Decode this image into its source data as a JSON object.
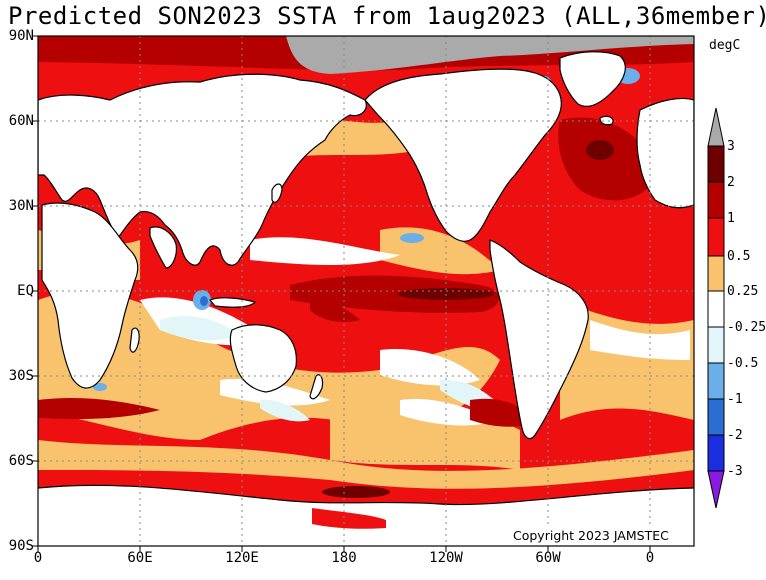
{
  "title": "Predicted SON2023 SSTA from 1aug2023 (ALL,36member)",
  "unit_label": "degC",
  "copyright": "Copyright 2023 JAMSTEC",
  "lat_labels": [
    "90N",
    "60N",
    "30N",
    "EQ",
    "30S",
    "60S",
    "90S"
  ],
  "lon_labels": [
    "0",
    "60E",
    "120E",
    "180",
    "120W",
    "60W",
    "0"
  ],
  "colorbar": {
    "labels": [
      "3",
      "2",
      "1",
      "0.5",
      "0.25",
      "-0.25",
      "-0.5",
      "-1",
      "-2",
      "-3"
    ],
    "colors": [
      "#6e0000",
      "#b50000",
      "#ee1010",
      "#f9c36e",
      "#ffffff",
      "#e2f6fa",
      "#6aaeea",
      "#2a6ed2",
      "#1a2ee0",
      "#8a2ae0"
    ],
    "upper_cap_color": "#aaaaaa",
    "lower_cap_color": "#8a1ae0"
  },
  "colors": {
    "land": "#ffffff",
    "sea_ice": "#aaaaaa",
    "grid": "#888888"
  }
}
